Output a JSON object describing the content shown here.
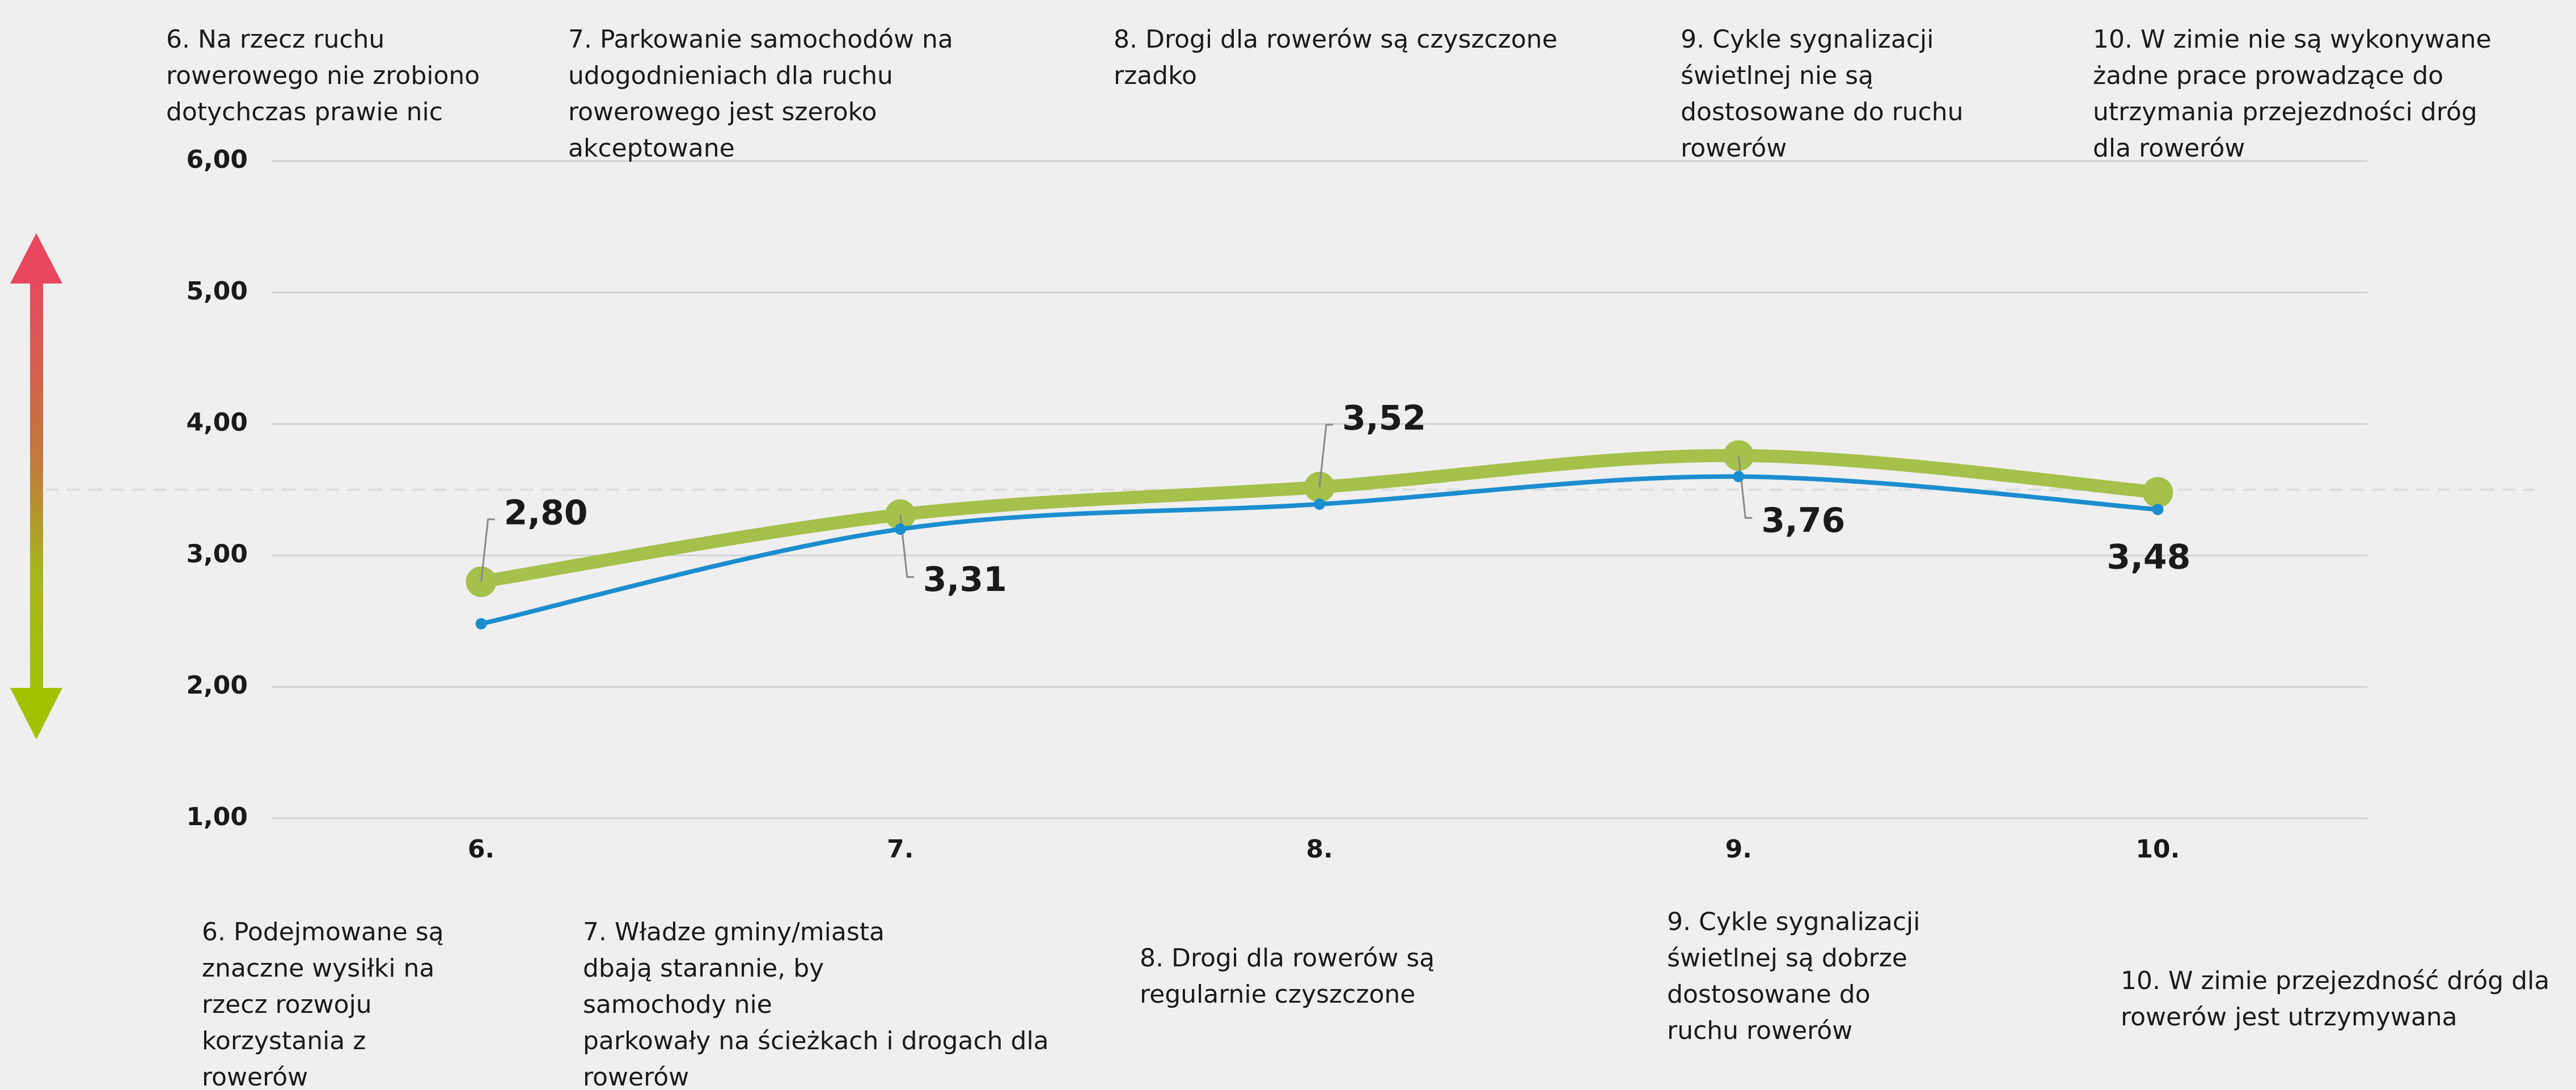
{
  "chart_data": {
    "type": "line",
    "categories": [
      "6.",
      "7.",
      "8.",
      "9.",
      "10."
    ],
    "series": [
      {
        "color": "#a5c04b",
        "values": [
          2.8,
          3.31,
          3.52,
          3.76,
          3.48
        ],
        "value_labels": [
          "2,80",
          "3,31",
          "3,52",
          "3,76",
          "3,48"
        ]
      },
      {
        "color": "#1b8dcf",
        "values": [
          2.48,
          3.2,
          3.39,
          3.6,
          3.35
        ]
      }
    ],
    "ylim": [
      1,
      6
    ],
    "yticks": [
      {
        "value": 1,
        "label": "1,00"
      },
      {
        "value": 2,
        "label": "2,00"
      },
      {
        "value": 3,
        "label": "3,00"
      },
      {
        "value": 4,
        "label": "4,00"
      },
      {
        "value": 5,
        "label": "5,00"
      },
      {
        "value": 6,
        "label": "6,00"
      }
    ],
    "grid": true,
    "reference_line": 3.5,
    "top_labels": [
      [
        "6. Na rzecz ruchu",
        "rowerowego nie zrobiono",
        "dotychczas prawie nic"
      ],
      [
        "7. Parkowanie samochodów na",
        "udogodnieniach dla ruchu",
        "rowerowego jest szeroko",
        "akceptowane"
      ],
      [
        "8. Drogi dla rowerów są czyszczone",
        "rzadko"
      ],
      [
        "9. Cykle sygnalizacji",
        "świetlnej nie są",
        "dostosowane do ruchu",
        "rowerów"
      ],
      [
        "10. W zimie nie są wykonywane",
        "żadne prace prowadzące do",
        "utrzymania przejezdności dróg",
        "dla rowerów"
      ]
    ],
    "bottom_labels": [
      [
        "6. Podejmowane są",
        "znaczne wysiłki na",
        "rzecz rozwoju",
        "korzystania z",
        "rowerów"
      ],
      [
        "7. Władze gminy/miasta",
        "dbają starannie, by",
        "samochody nie",
        "parkowały na ścieżkach i drogach dla",
        "rowerów"
      ],
      [
        "8. Drogi dla rowerów są",
        "regularnie czyszczone"
      ],
      [
        "9. Cykle sygnalizacji",
        "świetlnej są dobrze",
        "dostosowane do",
        "ruchu rowerów"
      ],
      [
        "10. W zimie przejezdność dróg dla",
        "rowerów jest utrzymywana"
      ]
    ]
  }
}
